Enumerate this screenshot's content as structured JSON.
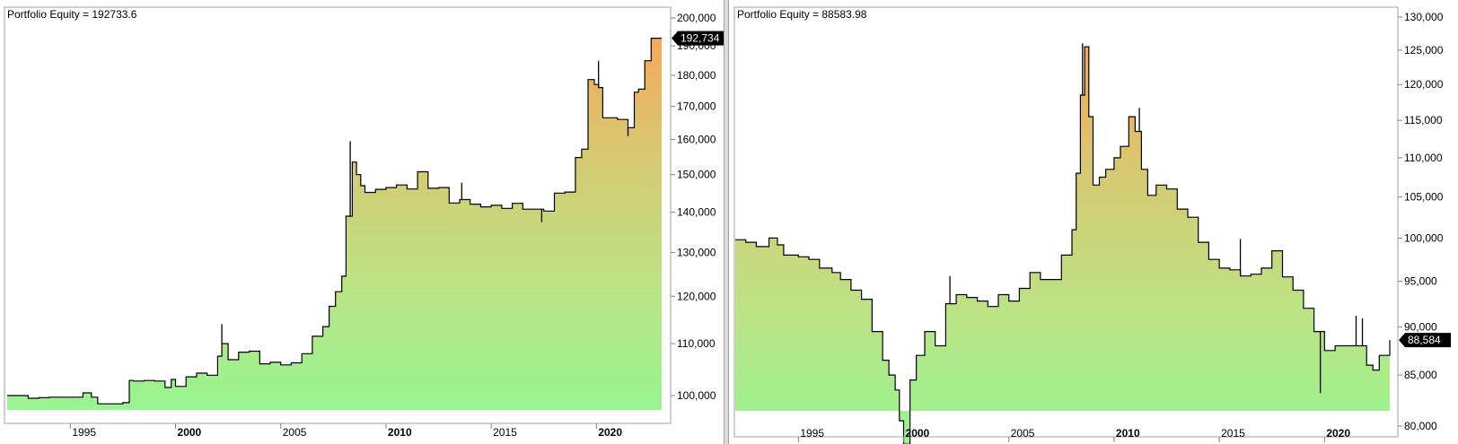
{
  "chart_data": [
    {
      "type": "area",
      "title": "Portfolio Equity = 192733.6",
      "last_value_label": "192,734",
      "y_scale": "log",
      "ylim": [
        96000,
        203000
      ],
      "xlim": [
        1992.0,
        2023.1
      ],
      "y_ticks": [
        {
          "value": 100000,
          "label": "100,000"
        },
        {
          "value": 110000,
          "label": "110,000"
        },
        {
          "value": 120000,
          "label": "120,000"
        },
        {
          "value": 130000,
          "label": "130,000"
        },
        {
          "value": 140000,
          "label": "140,000"
        },
        {
          "value": 150000,
          "label": "150,000"
        },
        {
          "value": 160000,
          "label": "160,000"
        },
        {
          "value": 170000,
          "label": "170,000"
        },
        {
          "value": 180000,
          "label": "180,000"
        },
        {
          "value": 190000,
          "label": "190,000"
        },
        {
          "value": 200000,
          "label": "200,000"
        }
      ],
      "x_ticks": [
        {
          "value": 1995,
          "label": "1995",
          "major": false
        },
        {
          "value": 2000,
          "label": "2000",
          "major": true
        },
        {
          "value": 2005,
          "label": "2005",
          "major": false
        },
        {
          "value": 2010,
          "label": "2010",
          "major": true
        },
        {
          "value": 2015,
          "label": "2015",
          "major": false
        },
        {
          "value": 2020,
          "label": "2020",
          "major": true
        }
      ],
      "x": [
        1992.0,
        1993.0,
        1993.5,
        1994.0,
        1995.5,
        1995.6,
        1996.0,
        1996.3,
        1997.0,
        1997.5,
        1997.8,
        1998.0,
        1998.5,
        1999.0,
        1999.5,
        1999.8,
        2000.0,
        2000.5,
        2001.0,
        2001.5,
        2002.0,
        2002.2,
        2002.5,
        2003.0,
        2003.5,
        2004.0,
        2004.5,
        2005.0,
        2005.5,
        2006.0,
        2006.5,
        2007.0,
        2007.3,
        2007.6,
        2007.9,
        2008.1,
        2008.4,
        2008.6,
        2008.8,
        2009.0,
        2009.5,
        2010.0,
        2010.5,
        2011.0,
        2011.5,
        2012.0,
        2012.5,
        2013.0,
        2013.5,
        2014.0,
        2014.5,
        2015.0,
        2015.5,
        2016.0,
        2016.5,
        2017.0,
        2017.5,
        2018.0,
        2018.5,
        2019.0,
        2019.3,
        2019.6,
        2019.9,
        2020.1,
        2020.3,
        2020.6,
        2021.0,
        2021.5,
        2021.8,
        2022.0,
        2022.3,
        2022.6,
        2023.1
      ],
      "y": [
        100000,
        99500,
        99600,
        99700,
        99700,
        100500,
        99700,
        98500,
        98500,
        98700,
        102800,
        102700,
        102800,
        102700,
        101500,
        103000,
        101700,
        103500,
        104200,
        103800,
        107500,
        110000,
        106800,
        108300,
        108500,
        106000,
        106300,
        105800,
        106200,
        108000,
        111500,
        113500,
        117800,
        121000,
        124500,
        139000,
        153500,
        150000,
        147000,
        145200,
        146000,
        146500,
        147200,
        146100,
        150800,
        146300,
        146500,
        142400,
        143300,
        142100,
        141400,
        141800,
        141000,
        142300,
        140800,
        140800,
        140300,
        145000,
        145300,
        154800,
        157200,
        178600,
        177000,
        176000,
        166500,
        166500,
        166000,
        163500,
        174500,
        175500,
        184900,
        192700,
        192700
      ],
      "spikes": [
        {
          "x": 2002.2,
          "y": 114000
        },
        {
          "x": 2008.3,
          "y": 159500
        },
        {
          "x": 2013.6,
          "y": 147800
        },
        {
          "x": 2017.4,
          "y": 137500
        },
        {
          "x": 2020.1,
          "y": 184900
        },
        {
          "x": 2021.5,
          "y": 161000
        }
      ]
    },
    {
      "type": "area",
      "title": "Portfolio Equity = 88583.98",
      "last_value_label": "88,584",
      "y_scale": "log",
      "ylim": [
        77400,
        130300
      ],
      "xlim": [
        1992.0,
        2023.1
      ],
      "y_ticks": [
        {
          "value": 80000,
          "label": "80,000"
        },
        {
          "value": 85000,
          "label": "85,000"
        },
        {
          "value": 90000,
          "label": "90,000"
        },
        {
          "value": 95000,
          "label": "95,000"
        },
        {
          "value": 100000,
          "label": "100,000"
        },
        {
          "value": 105000,
          "label": "105,000"
        },
        {
          "value": 110000,
          "label": "110,000"
        },
        {
          "value": 115000,
          "label": "115,000"
        },
        {
          "value": 120000,
          "label": "120,000"
        },
        {
          "value": 125000,
          "label": "125,000"
        },
        {
          "value": 130000,
          "label": "130,000"
        }
      ],
      "x_ticks": [
        {
          "value": 1995,
          "label": "1995",
          "major": false
        },
        {
          "value": 2000,
          "label": "2000",
          "major": true
        },
        {
          "value": 2005,
          "label": "2005",
          "major": false
        },
        {
          "value": 2010,
          "label": "2010",
          "major": true
        },
        {
          "value": 2015,
          "label": "2015",
          "major": false
        },
        {
          "value": 2020,
          "label": "2020",
          "major": true
        }
      ],
      "x": [
        1992.0,
        1992.5,
        1993.0,
        1993.6,
        1994.0,
        1994.3,
        1995.0,
        1995.5,
        1996.0,
        1996.6,
        1997.0,
        1997.5,
        1998.0,
        1998.5,
        1999.0,
        1999.3,
        1999.6,
        1999.8,
        2000.0,
        2000.3,
        2000.6,
        2001.0,
        2001.5,
        2002.0,
        2002.5,
        2003.0,
        2003.5,
        2004.0,
        2004.5,
        2005.0,
        2005.5,
        2006.0,
        2006.5,
        2007.0,
        2007.5,
        2008.0,
        2008.2,
        2008.4,
        2008.6,
        2008.8,
        2009.0,
        2009.3,
        2009.6,
        2010.0,
        2010.3,
        2010.7,
        2011.0,
        2011.3,
        2011.6,
        2012.0,
        2012.5,
        2013.0,
        2013.5,
        2014.0,
        2014.5,
        2015.0,
        2015.5,
        2016.0,
        2016.5,
        2017.0,
        2017.5,
        2018.0,
        2018.5,
        2019.0,
        2019.5,
        2020.0,
        2020.5,
        2021.0,
        2021.5,
        2022.0,
        2022.3,
        2022.6,
        2023.1
      ],
      "y": [
        99800,
        99500,
        99000,
        100000,
        99200,
        98000,
        97800,
        97500,
        96500,
        96000,
        95200,
        94000,
        93000,
        89500,
        86500,
        85000,
        83500,
        80500,
        78300,
        84500,
        87000,
        89500,
        88000,
        92500,
        93500,
        93200,
        92800,
        92200,
        93500,
        92800,
        94200,
        96000,
        95200,
        95200,
        98000,
        101000,
        108000,
        118500,
        125500,
        115500,
        106500,
        107500,
        108500,
        110000,
        111500,
        115500,
        113500,
        108500,
        105200,
        106500,
        106000,
        103500,
        102500,
        99500,
        97500,
        96500,
        96300,
        95600,
        95800,
        96500,
        98500,
        95500,
        94000,
        92000,
        89500,
        87500,
        88000,
        88000,
        88000,
        86000,
        85500,
        87000,
        88600
      ],
      "spikes": [
        {
          "x": 2002.2,
          "y": 95600
        },
        {
          "x": 2008.5,
          "y": 126000
        },
        {
          "x": 2011.2,
          "y": 116700
        },
        {
          "x": 2016.0,
          "y": 99900
        },
        {
          "x": 2019.8,
          "y": 83200
        },
        {
          "x": 2021.5,
          "y": 91200
        },
        {
          "x": 2021.8,
          "y": 90900
        }
      ]
    }
  ]
}
